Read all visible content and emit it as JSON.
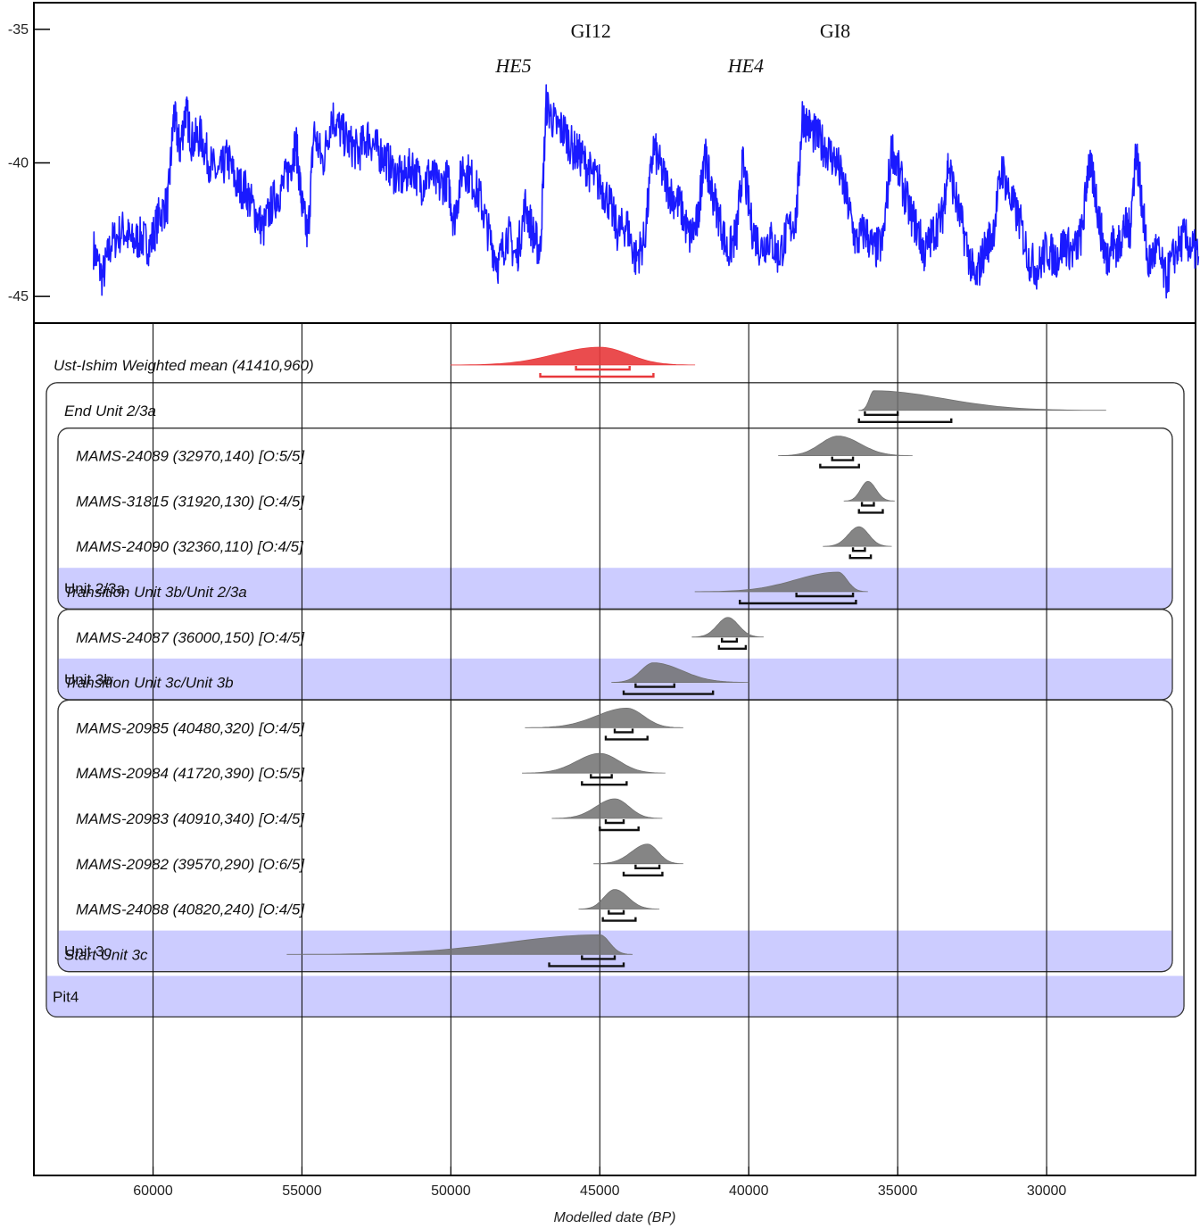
{
  "chart_data": [
    {
      "type": "line",
      "title": "",
      "xlabel": "",
      "ylabel": "",
      "yticks": [
        "-35",
        "-40",
        "-45"
      ],
      "ylim": [
        -46,
        -34
      ],
      "xlim": [
        64000,
        25000
      ],
      "colors": {
        "line": "#1a1aff"
      },
      "annotations": [
        {
          "text": "GI12",
          "x": 45300,
          "y": -35.3,
          "style": "normal"
        },
        {
          "text": "HE5",
          "x": 47900,
          "y": -36.6,
          "style": "italic"
        },
        {
          "text": "GI8",
          "x": 37100,
          "y": -35.3,
          "style": "normal"
        },
        {
          "text": "HE4",
          "x": 40100,
          "y": -36.6,
          "style": "italic"
        }
      ],
      "series": [
        {
          "points": [
            [
              62000,
              -43.2
            ],
            [
              61700,
              -44.3
            ],
            [
              61400,
              -43.0
            ],
            [
              61000,
              -42.5
            ],
            [
              60700,
              -43.0
            ],
            [
              60400,
              -42.8
            ],
            [
              60100,
              -43.1
            ],
            [
              59800,
              -42.0
            ],
            [
              59500,
              -41.5
            ],
            [
              59300,
              -38.2
            ],
            [
              59100,
              -39.5
            ],
            [
              58900,
              -38.0
            ],
            [
              58700,
              -39.2
            ],
            [
              58400,
              -39.0
            ],
            [
              58100,
              -40.0
            ],
            [
              57800,
              -40.5
            ],
            [
              57500,
              -39.8
            ],
            [
              57200,
              -40.8
            ],
            [
              56900,
              -41.0
            ],
            [
              56600,
              -41.8
            ],
            [
              56300,
              -42.5
            ],
            [
              56000,
              -41.5
            ],
            [
              55700,
              -41.0
            ],
            [
              55400,
              -40.2
            ],
            [
              55200,
              -39.2
            ],
            [
              55000,
              -41.6
            ],
            [
              54800,
              -42.8
            ],
            [
              54600,
              -38.8
            ],
            [
              54300,
              -40.0
            ],
            [
              54000,
              -38.2
            ],
            [
              53700,
              -38.8
            ],
            [
              53400,
              -39.3
            ],
            [
              53100,
              -39.6
            ],
            [
              52800,
              -39.0
            ],
            [
              52500,
              -39.5
            ],
            [
              52200,
              -39.8
            ],
            [
              51900,
              -40.4
            ],
            [
              51600,
              -40.6
            ],
            [
              51300,
              -40.1
            ],
            [
              51000,
              -40.8
            ],
            [
              50700,
              -40.4
            ],
            [
              50400,
              -40.9
            ],
            [
              50100,
              -40.6
            ],
            [
              49900,
              -42.2
            ],
            [
              49600,
              -40.1
            ],
            [
              49300,
              -40.6
            ],
            [
              49000,
              -41.4
            ],
            [
              48700,
              -42.8
            ],
            [
              48400,
              -43.8
            ],
            [
              48100,
              -42.6
            ],
            [
              47800,
              -43.6
            ],
            [
              47500,
              -41.6
            ],
            [
              47200,
              -42.8
            ],
            [
              47000,
              -43.3
            ],
            [
              46800,
              -37.8
            ],
            [
              46500,
              -38.6
            ],
            [
              46200,
              -38.8
            ],
            [
              45900,
              -39.5
            ],
            [
              45600,
              -39.8
            ],
            [
              45300,
              -40.4
            ],
            [
              45000,
              -40.8
            ],
            [
              44700,
              -41.4
            ],
            [
              44400,
              -42.6
            ],
            [
              44100,
              -42.3
            ],
            [
              43800,
              -43.6
            ],
            [
              43500,
              -42.9
            ],
            [
              43200,
              -39.4
            ],
            [
              42900,
              -40.4
            ],
            [
              42600,
              -41.2
            ],
            [
              42300,
              -41.6
            ],
            [
              42000,
              -42.8
            ],
            [
              41700,
              -42.2
            ],
            [
              41500,
              -39.5
            ],
            [
              41300,
              -40.8
            ],
            [
              41000,
              -42.0
            ],
            [
              40700,
              -43.4
            ],
            [
              40400,
              -42.6
            ],
            [
              40200,
              -40.0
            ],
            [
              39900,
              -42.4
            ],
            [
              39600,
              -43.2
            ],
            [
              39300,
              -42.8
            ],
            [
              39000,
              -43.5
            ],
            [
              38700,
              -42.6
            ],
            [
              38400,
              -42.0
            ],
            [
              38200,
              -38.2
            ],
            [
              37900,
              -38.8
            ],
            [
              37600,
              -39.2
            ],
            [
              37300,
              -39.6
            ],
            [
              37000,
              -40.1
            ],
            [
              36700,
              -41.4
            ],
            [
              36400,
              -43.0
            ],
            [
              36100,
              -42.5
            ],
            [
              35800,
              -43.3
            ],
            [
              35500,
              -43.0
            ],
            [
              35200,
              -39.4
            ],
            [
              34900,
              -40.6
            ],
            [
              34600,
              -41.8
            ],
            [
              34300,
              -42.6
            ],
            [
              34100,
              -43.4
            ],
            [
              33800,
              -42.6
            ],
            [
              33500,
              -42.0
            ],
            [
              33300,
              -40.0
            ],
            [
              33000,
              -41.6
            ],
            [
              32700,
              -43.0
            ],
            [
              32400,
              -44.5
            ],
            [
              32100,
              -43.3
            ],
            [
              31800,
              -42.6
            ],
            [
              31500,
              -40.2
            ],
            [
              31200,
              -41.4
            ],
            [
              30900,
              -42.2
            ],
            [
              30600,
              -43.6
            ],
            [
              30300,
              -44.0
            ],
            [
              30000,
              -43.2
            ],
            [
              29700,
              -43.6
            ],
            [
              29400,
              -43.0
            ],
            [
              29100,
              -43.4
            ],
            [
              28800,
              -42.6
            ],
            [
              28600,
              -40.0
            ],
            [
              28400,
              -40.8
            ],
            [
              28200,
              -42.4
            ],
            [
              28000,
              -43.6
            ],
            [
              27800,
              -43.0
            ],
            [
              27600,
              -43.2
            ],
            [
              27400,
              -42.4
            ],
            [
              27200,
              -42.5
            ],
            [
              27000,
              -39.5
            ],
            [
              26800,
              -41.4
            ],
            [
              26600,
              -43.8
            ],
            [
              26300,
              -43.2
            ],
            [
              26000,
              -44.4
            ],
            [
              25700,
              -43.4
            ],
            [
              25400,
              -42.8
            ],
            [
              25100,
              -43.2
            ],
            [
              24900,
              -43.5
            ]
          ]
        }
      ]
    },
    {
      "type": "area",
      "title": "",
      "xlabel": "Modelled date (BP)",
      "ylabel": "",
      "xlim": [
        64000,
        25000
      ],
      "xticks": [
        "60000",
        "55000",
        "50000",
        "45000",
        "40000",
        "35000",
        "30000"
      ],
      "grid": true,
      "colors": {
        "highlight": "#e8383b",
        "default": "#707070",
        "group_band": "#ccccff"
      },
      "rows": [
        {
          "label": "Ust-Ishim Weighted mean (41410,960)",
          "peak": 45000,
          "left": 50000,
          "right": 41800,
          "highlight": true,
          "bar68": [
            45800,
            44000
          ],
          "bar95": [
            47000,
            43200
          ]
        },
        {
          "label": "End Unit 2/3a",
          "peak": 35800,
          "left": 36300,
          "right": 28000,
          "bar68": [
            36100,
            35000
          ],
          "bar95": [
            36300,
            33200
          ]
        },
        {
          "label": "MAMS-24089 (32970,140) [O:5/5]",
          "peak": 37000,
          "left": 39000,
          "right": 34500,
          "bar68": [
            37200,
            36500
          ],
          "bar95": [
            37600,
            36300
          ]
        },
        {
          "label": "MAMS-31815 (31920,130) [O:4/5]",
          "peak": 36000,
          "left": 36800,
          "right": 35100,
          "bar68": [
            36200,
            35800
          ],
          "bar95": [
            36300,
            35500
          ]
        },
        {
          "label": "MAMS-24090 (32360,110) [O:4/5]",
          "peak": 36300,
          "left": 37500,
          "right": 35200,
          "bar68": [
            36500,
            36100
          ],
          "bar95": [
            36600,
            35900
          ]
        },
        {
          "label": "Transition Unit 3b/Unit 2/3a",
          "peak": 37000,
          "left": 41800,
          "right": 36000,
          "bar68": [
            38400,
            36500
          ],
          "bar95": [
            40300,
            36400
          ]
        },
        {
          "label": "MAMS-24087 (36000,150) [O:4/5]",
          "peak": 40700,
          "left": 41900,
          "right": 39500,
          "bar68": [
            40900,
            40400
          ],
          "bar95": [
            41000,
            40100
          ]
        },
        {
          "label": "Transition Unit 3c/Unit 3b",
          "peak": 43200,
          "left": 44600,
          "right": 40000,
          "bar68": [
            43800,
            42500
          ],
          "bar95": [
            44200,
            41200
          ]
        },
        {
          "label": "MAMS-20985 (40480,320) [O:4/5]",
          "peak": 44100,
          "left": 47500,
          "right": 42200,
          "bar68": [
            44500,
            43900
          ],
          "bar95": [
            44800,
            43400
          ]
        },
        {
          "label": "MAMS-20984 (41720,390) [O:5/5]",
          "peak": 45000,
          "left": 47600,
          "right": 42800,
          "bar68": [
            45300,
            44600
          ],
          "bar95": [
            45600,
            44100
          ]
        },
        {
          "label": "MAMS-20983 (40910,340) [O:4/5]",
          "peak": 44500,
          "left": 46600,
          "right": 42900,
          "bar68": [
            44800,
            44200
          ],
          "bar95": [
            45000,
            43700
          ]
        },
        {
          "label": "MAMS-20982 (39570,290) [O:6/5]",
          "peak": 43400,
          "left": 45200,
          "right": 42200,
          "bar68": [
            43800,
            43000
          ],
          "bar95": [
            44200,
            42900
          ]
        },
        {
          "label": "MAMS-24088 (40820,240) [O:4/5]",
          "peak": 44500,
          "left": 45700,
          "right": 43000,
          "bar68": [
            44700,
            44200
          ],
          "bar95": [
            44900,
            43800
          ]
        },
        {
          "label": "Start Unit 3c",
          "peak": 45000,
          "left": 55500,
          "right": 43900,
          "bar68": [
            45600,
            44500
          ],
          "bar95": [
            46700,
            44200
          ]
        }
      ],
      "groups": [
        {
          "label": "Unit 2/3a",
          "first_row": 2,
          "last_row": 4
        },
        {
          "label": "Unit 3b",
          "first_row": 6,
          "last_row": 6
        },
        {
          "label": "Unit 3c",
          "first_row": 8,
          "last_row": 12
        },
        {
          "label": "Pit4",
          "first_row": 1,
          "last_row": 13,
          "outer": true
        }
      ]
    }
  ]
}
